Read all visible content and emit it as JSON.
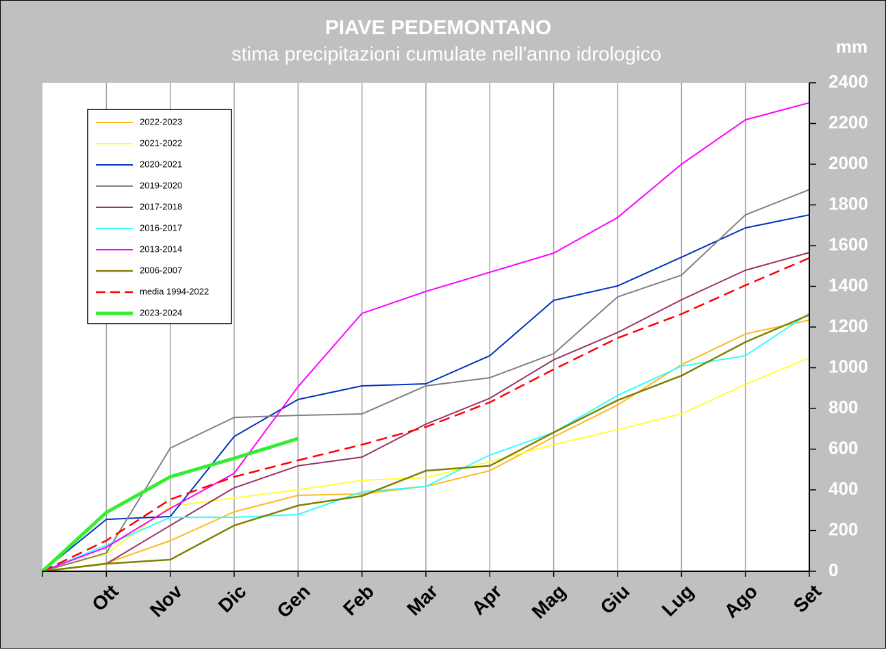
{
  "chart_data": {
    "type": "line",
    "title": "PIAVE PEDEMONTANO",
    "subtitle": "stima precipitazioni cumulate nell'anno idrologico",
    "y_axis_label": "mm",
    "categories": [
      null,
      "Ott",
      "Nov",
      "Dic",
      "Gen",
      "Feb",
      "Mar",
      "Apr",
      "Mag",
      "Giu",
      "Lug",
      "Ago",
      "Set"
    ],
    "ylim": [
      0,
      2400
    ],
    "yticks": [
      0,
      200,
      400,
      600,
      800,
      1000,
      1200,
      1400,
      1600,
      1800,
      2000,
      2200,
      2400
    ],
    "grid": "x",
    "legend": "top-left",
    "series": [
      {
        "name": "2022-2023",
        "color": "#ffb81c",
        "width": 2,
        "dashed": false,
        "values": [
          0,
          40,
          150,
          292,
          373,
          380,
          417,
          494,
          660,
          817,
          1015,
          1166,
          1234
        ]
      },
      {
        "name": "2021-2022",
        "color": "#ffff33",
        "width": 2,
        "dashed": false,
        "values": [
          0,
          85,
          319,
          360,
          400,
          447,
          460,
          538,
          622,
          696,
          773,
          918,
          1049
        ]
      },
      {
        "name": "2020-2021",
        "color": "#0033bb",
        "width": 2,
        "dashed": false,
        "values": [
          0,
          255,
          269,
          662,
          844,
          911,
          921,
          1059,
          1331,
          1402,
          1543,
          1687,
          1751
        ]
      },
      {
        "name": "2019-2020",
        "color": "#808080",
        "width": 2,
        "dashed": false,
        "values": [
          0,
          90,
          605,
          756,
          766,
          773,
          911,
          951,
          1069,
          1348,
          1455,
          1751,
          1875
        ]
      },
      {
        "name": "2017-2018",
        "color": "#993366",
        "width": 2,
        "dashed": false,
        "values": [
          0,
          37,
          225,
          410,
          518,
          561,
          723,
          850,
          1039,
          1173,
          1334,
          1479,
          1566
        ]
      },
      {
        "name": "2016-2017",
        "color": "#33ffff",
        "width": 2,
        "dashed": false,
        "values": [
          0,
          128,
          265,
          265,
          279,
          390,
          417,
          571,
          682,
          864,
          1008,
          1059,
          1267
        ]
      },
      {
        "name": "2013-2014",
        "color": "#ff00ff",
        "width": 2,
        "dashed": false,
        "values": [
          0,
          118,
          309,
          481,
          907,
          1267,
          1375,
          1469,
          1563,
          1738,
          2000,
          2218,
          2302
        ]
      },
      {
        "name": "2006-2007",
        "color": "#808000",
        "width": 2.5,
        "dashed": false,
        "values": [
          0,
          37,
          57,
          225,
          323,
          370,
          494,
          518,
          682,
          840,
          961,
          1126,
          1260
        ]
      },
      {
        "name": "media 1994-2022",
        "color": "#ff0000",
        "width": 2.5,
        "dashed": true,
        "values": [
          0,
          151,
          353,
          464,
          545,
          622,
          709,
          830,
          992,
          1146,
          1264,
          1405,
          1539
        ]
      },
      {
        "name": "2023-2024",
        "color": "#33ee33",
        "width": 5,
        "dashed": false,
        "values": [
          0,
          289,
          464,
          555,
          652,
          null,
          null,
          null,
          null,
          null,
          null,
          null,
          null
        ]
      }
    ]
  }
}
